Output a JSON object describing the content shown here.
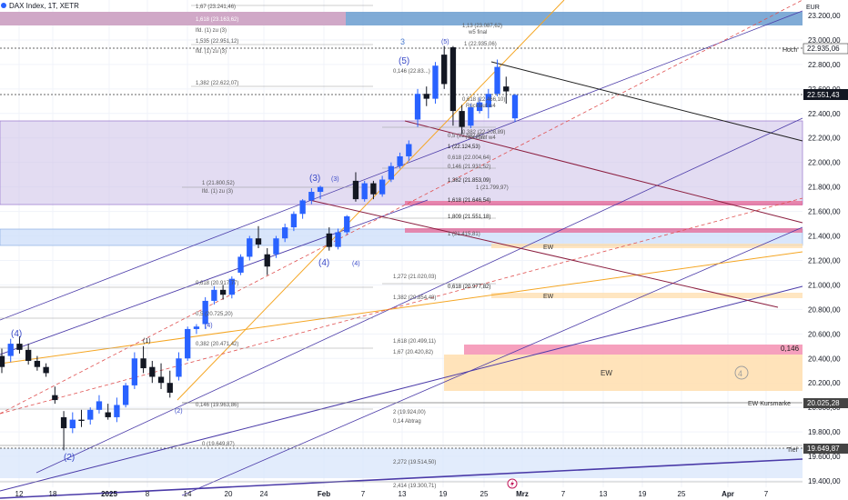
{
  "title": "DAX Index, 1T, XETR",
  "currency": "EUR",
  "price_ticks": [
    "23.200,00",
    "23.000,00",
    "22.800,00",
    "22.600,00",
    "22.400,00",
    "22.200,00",
    "22.000,00",
    "21.800,00",
    "21.600,00",
    "21.400,00",
    "21.200,00",
    "21.000,00",
    "20.800,00",
    "20.600,00",
    "20.400,00",
    "20.200,00",
    "20.000,00",
    "19.800,00",
    "19.600,00",
    "19.400,00"
  ],
  "date_ticks": [
    "12",
    "18",
    "2025",
    "8",
    "14",
    "20",
    "24",
    "Feb",
    "7",
    "13",
    "19",
    "25",
    "Mrz",
    "7",
    "13",
    "19",
    "25",
    "Apr",
    "7"
  ],
  "price_labels": {
    "hoch_name": "Hoch",
    "hoch_value": "22.935,06",
    "current": "22.551,43",
    "ew_kursmarke_name": "EW Kursmarke",
    "ew_kursmarke_value": "20.025,28",
    "tief_name": "Tief",
    "tief_value": "19.649,87",
    "zone_value": "0,146"
  },
  "zone_labels": {
    "ew1": "EW",
    "ew2": "EW",
    "ew3": "EW"
  },
  "wave_labels": {
    "w4a": "(4)",
    "w4b": "(4)",
    "w3a": "(3)",
    "w3b": "(3)",
    "w5": "(5)",
    "w3c": "3",
    "w5c": "(5)",
    "w2a": "(2)",
    "w2b": "(2)",
    "w1": "(1)",
    "w4c": "(4)",
    "w4small": "(4)",
    "w4circle": "4"
  },
  "fib_labels": [
    "1,67 (23.241,46)",
    "1,618 (23.163,62)",
    "lfd. (1) zu (3)",
    "1,535 (22.951,12)",
    "lfd. (1) zu (3)",
    "1,382 (22.622,07)",
    "1 (21.800,52)",
    "lfd. (1) zu (3)",
    "0,5 (22.182,00)",
    "1 (22.124,53)",
    "0,618 (22.004,64)",
    "0,146 (21.931,52)",
    "1,382 (21.853,09)",
    "1,618 (21.646,54)",
    "1,809 (21.551,18)",
    "1 (21.415,81)",
    "0,618 (20.977,82)",
    "1,382 (20.854,48)",
    "0,618 (20.917,77)",
    "0,5 (20.725,20)",
    "0,382 (20.471,42)",
    "1,618 (20.499,11)",
    "1,67 (20.420,82)",
    "0,146 (19.963,86)",
    "2 (19.924,00)",
    "0 (19.649,87)",
    "2,272 (19.514,50)",
    "2,414 (19.300,71)",
    "1,272 (21.020,03)",
    "0,14 Abtrag",
    "1 (22.935,06)",
    "0,618 (22.466,10)",
    "Rücklauf w4",
    "0,382 (22.208,89)",
    "Rücklauf w4",
    "1,13 (23.087,62)",
    "w5 final",
    "0,146 (22.83...)",
    "1 (21.799,97)"
  ],
  "chart_data": {
    "type": "candlestick",
    "title": "DAX Index, 1T, XETR",
    "y_unit": "EUR",
    "y_range": [
      19300,
      23400
    ],
    "price_scale_ticks": [
      23200,
      23000,
      22800,
      22600,
      22400,
      22200,
      22000,
      21800,
      21600,
      21400,
      21200,
      21000,
      20800,
      20600,
      20400,
      20200,
      20000,
      19800,
      19600,
      19400
    ],
    "x_tick_labels": [
      "12",
      "18",
      "2025",
      "8",
      "14",
      "20",
      "24",
      "Feb",
      "7",
      "13",
      "19",
      "25",
      "Mrz",
      "7",
      "13",
      "19",
      "25",
      "Apr",
      "7"
    ],
    "candles": [
      {
        "o": 20420,
        "h": 20480,
        "l": 20280,
        "c": 20330
      },
      {
        "o": 20420,
        "h": 20560,
        "l": 20370,
        "c": 20520
      },
      {
        "o": 20520,
        "h": 20580,
        "l": 20440,
        "c": 20470
      },
      {
        "o": 20470,
        "h": 20520,
        "l": 20350,
        "c": 20380
      },
      {
        "o": 20380,
        "h": 20420,
        "l": 20300,
        "c": 20330
      },
      {
        "o": 20330,
        "h": 20360,
        "l": 20250,
        "c": 20280
      },
      {
        "o": 20100,
        "h": 20170,
        "l": 20030,
        "c": 20060
      },
      {
        "o": 19920,
        "h": 19970,
        "l": 19650,
        "c": 19830
      },
      {
        "o": 19830,
        "h": 19960,
        "l": 19790,
        "c": 19900
      },
      {
        "o": 19900,
        "h": 19980,
        "l": 19840,
        "c": 19890
      },
      {
        "o": 19900,
        "h": 20000,
        "l": 19860,
        "c": 19980
      },
      {
        "o": 19980,
        "h": 20100,
        "l": 19950,
        "c": 20050
      },
      {
        "o": 19960,
        "h": 20030,
        "l": 19900,
        "c": 19920
      },
      {
        "o": 19920,
        "h": 20080,
        "l": 19880,
        "c": 20020
      },
      {
        "o": 20020,
        "h": 20200,
        "l": 20000,
        "c": 20180
      },
      {
        "o": 20180,
        "h": 20450,
        "l": 20150,
        "c": 20400
      },
      {
        "o": 20400,
        "h": 20500,
        "l": 20280,
        "c": 20320
      },
      {
        "o": 20330,
        "h": 20380,
        "l": 20200,
        "c": 20250
      },
      {
        "o": 20250,
        "h": 20360,
        "l": 20150,
        "c": 20200
      },
      {
        "o": 20200,
        "h": 20300,
        "l": 20080,
        "c": 20120
      },
      {
        "o": 20250,
        "h": 20450,
        "l": 20220,
        "c": 20400
      },
      {
        "o": 20400,
        "h": 20660,
        "l": 20380,
        "c": 20640
      },
      {
        "o": 20640,
        "h": 20680,
        "l": 20600,
        "c": 20660
      },
      {
        "o": 20680,
        "h": 20900,
        "l": 20640,
        "c": 20870
      },
      {
        "o": 20870,
        "h": 20990,
        "l": 20840,
        "c": 20960
      },
      {
        "o": 20960,
        "h": 21000,
        "l": 20880,
        "c": 20920
      },
      {
        "o": 20920,
        "h": 21070,
        "l": 20890,
        "c": 21050
      },
      {
        "o": 21100,
        "h": 21250,
        "l": 21080,
        "c": 21230
      },
      {
        "o": 21230,
        "h": 21400,
        "l": 21200,
        "c": 21380
      },
      {
        "o": 21380,
        "h": 21480,
        "l": 21300,
        "c": 21330
      },
      {
        "o": 21250,
        "h": 21300,
        "l": 21080,
        "c": 21150
      },
      {
        "o": 21250,
        "h": 21400,
        "l": 21220,
        "c": 21380
      },
      {
        "o": 21380,
        "h": 21500,
        "l": 21350,
        "c": 21470
      },
      {
        "o": 21470,
        "h": 21600,
        "l": 21440,
        "c": 21580
      },
      {
        "o": 21580,
        "h": 21700,
        "l": 21540,
        "c": 21690
      },
      {
        "o": 21690,
        "h": 21790,
        "l": 21660,
        "c": 21760
      },
      {
        "o": 21760,
        "h": 21810,
        "l": 21700,
        "c": 21800
      },
      {
        "o": 21420,
        "h": 21470,
        "l": 21280,
        "c": 21310
      },
      {
        "o": 21310,
        "h": 21460,
        "l": 21290,
        "c": 21430
      },
      {
        "o": 21430,
        "h": 21570,
        "l": 21410,
        "c": 21560
      },
      {
        "o": 21850,
        "h": 21920,
        "l": 21680,
        "c": 21700
      },
      {
        "o": 21700,
        "h": 21850,
        "l": 21680,
        "c": 21830
      },
      {
        "o": 21830,
        "h": 21850,
        "l": 21700,
        "c": 21740
      },
      {
        "o": 21740,
        "h": 21890,
        "l": 21720,
        "c": 21860
      },
      {
        "o": 21860,
        "h": 22000,
        "l": 21840,
        "c": 21970
      },
      {
        "o": 21970,
        "h": 22080,
        "l": 21950,
        "c": 22050
      },
      {
        "o": 22050,
        "h": 22180,
        "l": 22010,
        "c": 22150
      },
      {
        "o": 22350,
        "h": 22600,
        "l": 22290,
        "c": 22560
      },
      {
        "o": 22560,
        "h": 22620,
        "l": 22460,
        "c": 22520
      },
      {
        "o": 22520,
        "h": 22820,
        "l": 22480,
        "c": 22790
      },
      {
        "o": 22880,
        "h": 22950,
        "l": 22600,
        "c": 22640
      },
      {
        "o": 22940,
        "h": 22950,
        "l": 22300,
        "c": 22420
      },
      {
        "o": 22420,
        "h": 22470,
        "l": 22230,
        "c": 22290
      },
      {
        "o": 22300,
        "h": 22480,
        "l": 22280,
        "c": 22450
      },
      {
        "o": 22420,
        "h": 22530,
        "l": 22400,
        "c": 22490
      },
      {
        "o": 22450,
        "h": 22600,
        "l": 22360,
        "c": 22560
      },
      {
        "o": 22560,
        "h": 22840,
        "l": 22540,
        "c": 22780
      },
      {
        "o": 22620,
        "h": 22700,
        "l": 22480,
        "c": 22580
      },
      {
        "o": 22360,
        "h": 22560,
        "l": 22330,
        "c": 22551
      }
    ],
    "horizontal_levels": {
      "hoch": 22935.06,
      "current": 22551.43,
      "ew_kursmarke": 20025.28,
      "tief": 19649.87
    },
    "zones": [
      {
        "from": 21660,
        "to": 22320,
        "name": "purple"
      },
      {
        "from": 21270,
        "to": 21450,
        "name": "blue"
      },
      {
        "from": 23100,
        "to": 23330,
        "name": "blue-top"
      },
      {
        "from": 19380,
        "to": 19650,
        "name": "blue-bottom"
      },
      {
        "from": 20130,
        "to": 20430,
        "name": "EW orange"
      }
    ],
    "grid": true,
    "legend": "none"
  }
}
